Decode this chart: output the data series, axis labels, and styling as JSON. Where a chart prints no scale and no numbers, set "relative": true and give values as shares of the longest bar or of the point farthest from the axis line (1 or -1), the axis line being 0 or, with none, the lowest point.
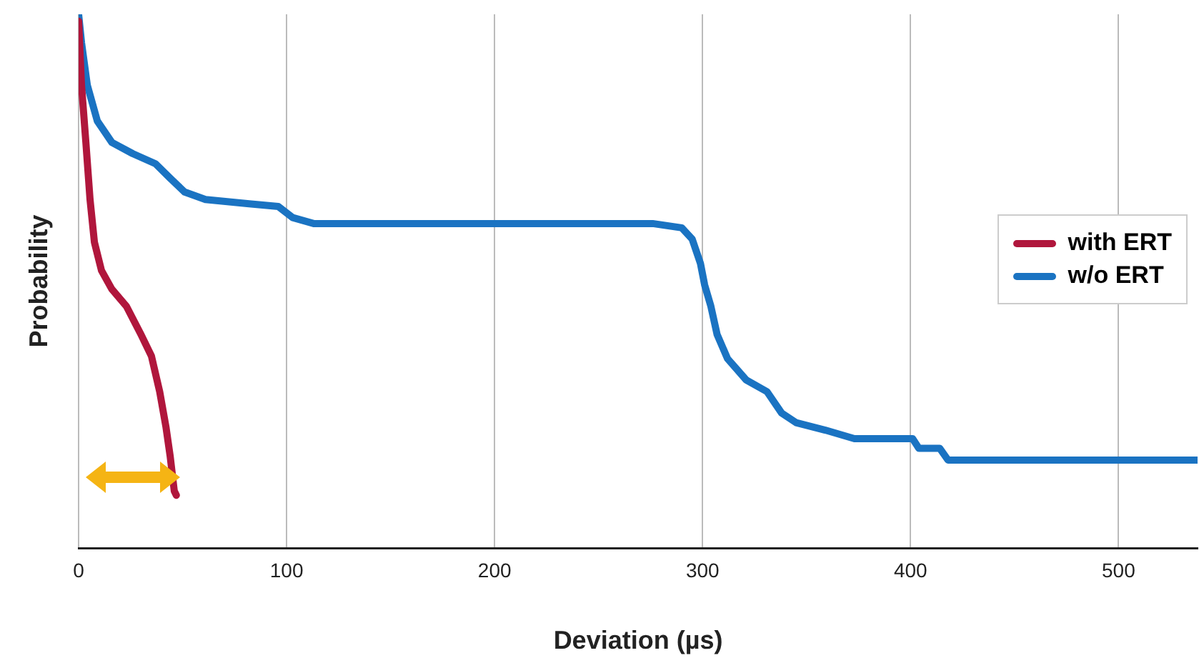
{
  "chart_data": {
    "type": "line",
    "xlabel": "Deviation (µs)",
    "ylabel": "Probability",
    "relative": true,
    "xlim": [
      0,
      538
    ],
    "xticks": [
      0,
      100,
      200,
      300,
      400,
      500
    ],
    "grid": "x",
    "legend": "right",
    "marker": "none",
    "line_style": "solid",
    "series": [
      {
        "name": "with ERT",
        "color": "#b0163c",
        "x": [
          0,
          1.4,
          3.5,
          5.5,
          7.6,
          11,
          16,
          23,
          30,
          35,
          39,
          42,
          44,
          46,
          47
        ],
        "values": [
          0.987,
          0.867,
          0.76,
          0.653,
          0.573,
          0.52,
          0.485,
          0.453,
          0.4,
          0.36,
          0.293,
          0.227,
          0.173,
          0.107,
          0.099
        ]
      },
      {
        "name": "w/o ERT",
        "color": "#1a73c2",
        "x": [
          0,
          1.4,
          4.2,
          9,
          16,
          26,
          37,
          44,
          51,
          61,
          82,
          96,
          103,
          113,
          165,
          276,
          290,
          295,
          299,
          301,
          304,
          307,
          312,
          321,
          331,
          338,
          345,
          359,
          373,
          401,
          404,
          414,
          418,
          538
        ],
        "values": [
          1,
          0.947,
          0.867,
          0.8,
          0.76,
          0.739,
          0.72,
          0.693,
          0.667,
          0.653,
          0.645,
          0.64,
          0.619,
          0.608,
          0.608,
          0.608,
          0.6,
          0.579,
          0.533,
          0.493,
          0.453,
          0.4,
          0.355,
          0.315,
          0.293,
          0.253,
          0.235,
          0.221,
          0.205,
          0.205,
          0.187,
          0.187,
          0.165,
          0.165
        ]
      }
    ]
  }
}
